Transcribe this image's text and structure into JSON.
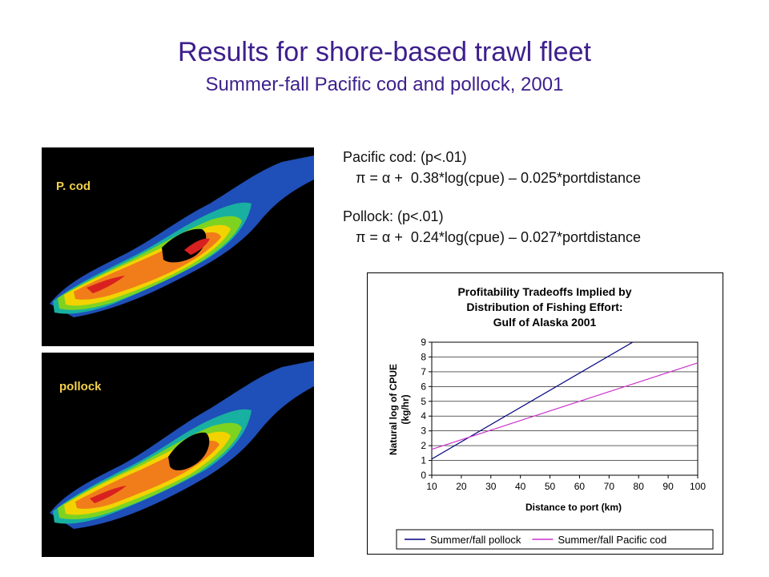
{
  "slide": {
    "title": "Results for shore-based trawl fleet",
    "subtitle": "Summer-fall Pacific cod and pollock, 2001"
  },
  "maps": [
    {
      "label": "P. cod"
    },
    {
      "label": "pollock"
    }
  ],
  "equations": {
    "cod_header": "Pacific cod:  (p<.01)",
    "cod_formula": "π = α +  0.38*log(cpue) – 0.025*portdistance",
    "pollock_header": "Pollock:  (p<.01)",
    "pollock_formula": "π = α +  0.24*log(cpue) – 0.027*portdistance"
  },
  "chart_data": {
    "type": "line",
    "title_lines": [
      "Profitability Tradeoffs Implied by",
      "Distribution of Fishing Effort:",
      "Gulf of Alaska 2001"
    ],
    "xlabel": "Distance to port (km)",
    "ylabel_lines": [
      "Natural log of CPUE",
      "(kg/hr)"
    ],
    "xlim": [
      10,
      100
    ],
    "ylim": [
      0,
      9
    ],
    "x_ticks": [
      10,
      20,
      30,
      40,
      50,
      60,
      70,
      80,
      90,
      100
    ],
    "y_ticks": [
      0,
      1,
      2,
      3,
      4,
      5,
      6,
      7,
      8,
      9
    ],
    "grid": "horizontal",
    "legend_position": "bottom",
    "series": [
      {
        "name": "Summer/fall pollock",
        "color": "#000080",
        "x": [
          10,
          78
        ],
        "y": [
          1.1,
          9.0
        ]
      },
      {
        "name": "Summer/fall Pacific cod",
        "color": "#cc33cc",
        "x": [
          10,
          100
        ],
        "y": [
          1.75,
          7.6
        ]
      }
    ]
  }
}
